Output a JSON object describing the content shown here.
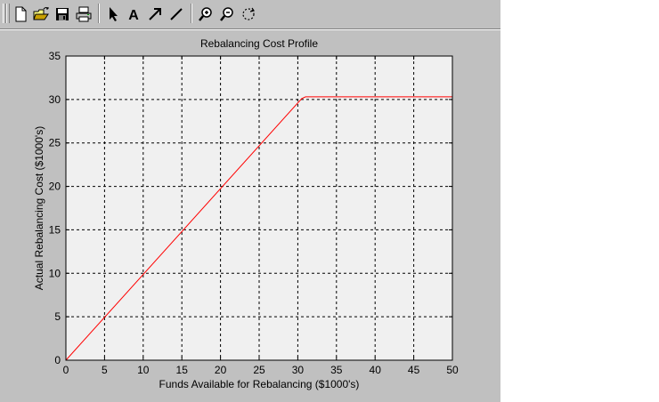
{
  "toolbar": {
    "buttons": [
      {
        "name": "new-figure",
        "icon": "new-file-icon"
      },
      {
        "name": "open-file",
        "icon": "open-folder-icon"
      },
      {
        "name": "save",
        "icon": "save-disk-icon"
      },
      {
        "name": "print",
        "icon": "printer-icon"
      },
      {
        "name": "edit-plot",
        "icon": "arrow-pointer-icon"
      },
      {
        "name": "insert-text",
        "icon": "text-A-icon"
      },
      {
        "name": "insert-arrow",
        "icon": "diagonal-arrow-icon"
      },
      {
        "name": "insert-line",
        "icon": "line-icon"
      },
      {
        "name": "zoom-in",
        "icon": "zoom-in-icon"
      },
      {
        "name": "zoom-out",
        "icon": "zoom-out-icon"
      },
      {
        "name": "rotate-3d",
        "icon": "rotate-icon"
      }
    ],
    "text_tool_glyph": "A"
  },
  "chart_data": {
    "type": "line",
    "title": "Rebalancing Cost Profile",
    "xlabel": "Funds Available for Rebalancing ($1000's)",
    "ylabel": "Actual Rebalancing Cost ($1000's)",
    "xlim": [
      0,
      50
    ],
    "ylim": [
      0,
      35
    ],
    "xticks": [
      "0",
      "5",
      "10",
      "15",
      "20",
      "25",
      "30",
      "35",
      "40",
      "45",
      "50"
    ],
    "yticks": [
      "0",
      "5",
      "10",
      "15",
      "20",
      "25",
      "30",
      "35"
    ],
    "grid": true,
    "grid_style": "dashed",
    "background_color": "#f0f0f0",
    "series": [
      {
        "color": "#ff0000",
        "x": [
          0,
          30.5,
          31,
          50
        ],
        "y": [
          0,
          30.1,
          30.3,
          30.3
        ]
      }
    ]
  }
}
